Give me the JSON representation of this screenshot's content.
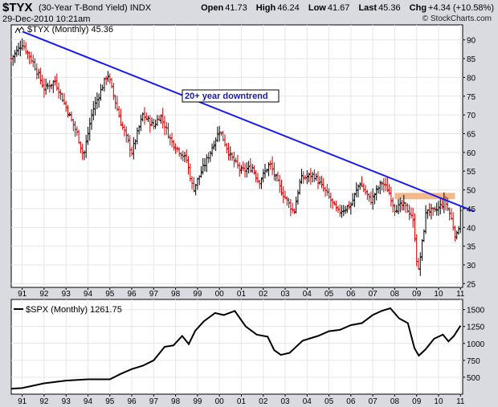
{
  "header": {
    "symbol": "$TYX",
    "description": "(30-Year T-Bond Yield)",
    "exchange": "INDX",
    "date": "29-Dec-2010 10:21am",
    "copyright": "© StockCharts.com",
    "open_label": "Open",
    "open_value": "41.73",
    "high_label": "High",
    "high_value": "46.24",
    "low_label": "Low",
    "low_value": "41.67",
    "last_label": "Last",
    "last_value": "45.36",
    "chg_label": "Chg",
    "chg_value": "+4.34 (+10.58%)"
  },
  "colors": {
    "up": "#000000",
    "down": "#cc0000",
    "trendline": "#1a1aee",
    "resistance": "#f4b88a",
    "panel_bg": "#ffffff",
    "page_bg": "#d9dbe1"
  },
  "chart_data": [
    {
      "type": "ohlc-bar",
      "title": "$TYX (Monthly) 45.36",
      "legend_symbol": "$TYX",
      "legend_label": "(Monthly) 45.36",
      "x_start": 1990.5,
      "x_end": 2011.1,
      "ylim": [
        24,
        94
      ],
      "y_ticks": [
        25,
        30,
        35,
        40,
        45,
        50,
        55,
        60,
        65,
        70,
        75,
        80,
        85,
        90
      ],
      "x_ticks": [
        "91",
        "92",
        "93",
        "94",
        "95",
        "96",
        "97",
        "98",
        "99",
        "00",
        "01",
        "02",
        "03",
        "04",
        "05",
        "06",
        "07",
        "08",
        "09",
        "10",
        "11"
      ],
      "x_tick_years": [
        1991,
        1992,
        1993,
        1994,
        1995,
        1996,
        1997,
        1998,
        1999,
        2000,
        2001,
        2002,
        2003,
        2004,
        2005,
        2006,
        2007,
        2008,
        2009,
        2010,
        2011
      ],
      "annotation": "20+ year downtrend",
      "trendline": {
        "from": [
          1990.5,
          91.8
        ],
        "to": [
          2011.1,
          46.0
        ]
      },
      "resistance": {
        "x": [
          2008.0,
          2010.75
        ],
        "y": [
          47.5,
          49.2
        ]
      },
      "anchors": [
        [
          1990.5,
          85
        ],
        [
          1991.0,
          89
        ],
        [
          1991.5,
          84
        ],
        [
          1992.0,
          77
        ],
        [
          1992.5,
          79
        ],
        [
          1993.0,
          72
        ],
        [
          1993.5,
          65
        ],
        [
          1993.8,
          59
        ],
        [
          1994.2,
          71
        ],
        [
          1994.9,
          81
        ],
        [
          1995.5,
          68
        ],
        [
          1996.0,
          60
        ],
        [
          1996.5,
          70
        ],
        [
          1997.0,
          67
        ],
        [
          1997.3,
          70
        ],
        [
          1997.8,
          63
        ],
        [
          1998.5,
          58
        ],
        [
          1998.8,
          50
        ],
        [
          1999.5,
          59
        ],
        [
          2000.0,
          66
        ],
        [
          2000.5,
          59
        ],
        [
          2001.0,
          55
        ],
        [
          2001.5,
          56
        ],
        [
          2001.8,
          52
        ],
        [
          2002.3,
          57
        ],
        [
          2002.8,
          50
        ],
        [
          2003.4,
          44
        ],
        [
          2003.7,
          53
        ],
        [
          2004.3,
          54
        ],
        [
          2004.9,
          49
        ],
        [
          2005.4,
          44
        ],
        [
          2006.0,
          46
        ],
        [
          2006.4,
          52
        ],
        [
          2006.9,
          47
        ],
        [
          2007.4,
          52
        ],
        [
          2007.7,
          50
        ],
        [
          2008.0,
          45
        ],
        [
          2008.4,
          46
        ],
        [
          2008.8,
          43
        ],
        [
          2008.95,
          36
        ],
        [
          2009.05,
          27
        ],
        [
          2009.3,
          38
        ],
        [
          2009.45,
          45
        ],
        [
          2009.8,
          44
        ],
        [
          2010.3,
          47
        ],
        [
          2010.6,
          42
        ],
        [
          2010.8,
          37
        ],
        [
          2010.95,
          41
        ],
        [
          2011.0,
          45
        ]
      ]
    },
    {
      "type": "line",
      "title": "$SPX (Monthly) 1261.75",
      "legend_symbol": "$SPX",
      "legend_label": "(Monthly) 1261.75",
      "ylim": [
        250,
        1650
      ],
      "y_ticks": [
        500,
        750,
        1000,
        1250,
        1500
      ],
      "x": [
        1990.5,
        1991.0,
        1992.0,
        1993.0,
        1994.0,
        1995.0,
        1995.5,
        1996.0,
        1996.5,
        1997.0,
        1997.5,
        1997.9,
        1998.3,
        1998.6,
        1998.9,
        1999.3,
        1999.8,
        2000.2,
        2000.7,
        2001.2,
        2001.7,
        2002.2,
        2002.5,
        2002.8,
        2003.2,
        2003.8,
        2004.5,
        2005.0,
        2005.5,
        2006.0,
        2006.5,
        2007.0,
        2007.4,
        2007.8,
        2008.2,
        2008.6,
        2008.9,
        2009.1,
        2009.4,
        2009.8,
        2010.2,
        2010.45,
        2010.7,
        2011.0
      ],
      "values": [
        330,
        340,
        410,
        450,
        470,
        470,
        550,
        620,
        670,
        750,
        950,
        970,
        1110,
        990,
        1190,
        1330,
        1450,
        1420,
        1480,
        1250,
        1130,
        1100,
        900,
        830,
        860,
        1040,
        1110,
        1180,
        1200,
        1270,
        1300,
        1420,
        1480,
        1520,
        1370,
        1300,
        930,
        820,
        910,
        1070,
        1130,
        1030,
        1110,
        1262
      ]
    }
  ]
}
